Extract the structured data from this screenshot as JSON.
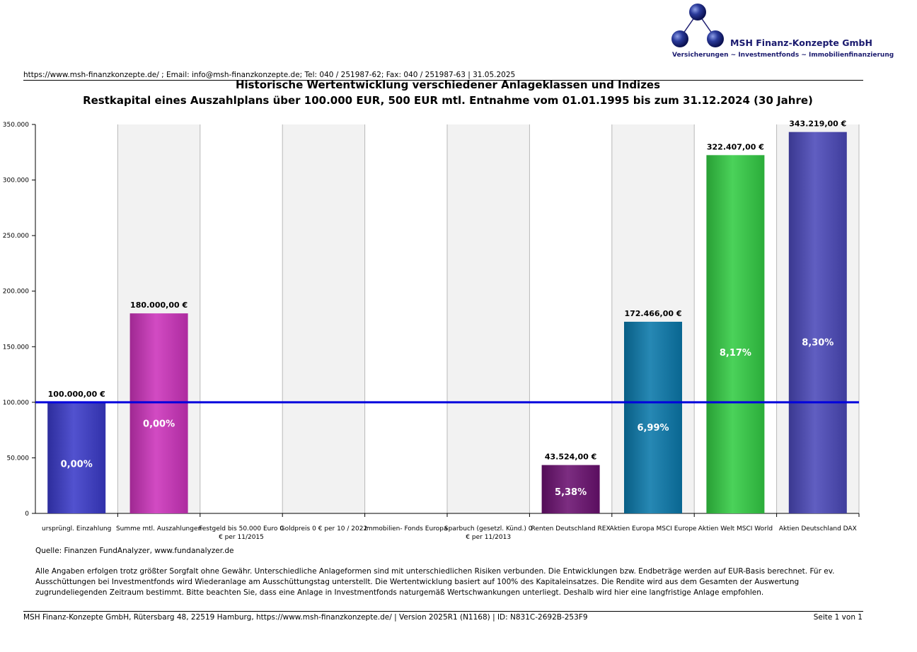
{
  "header": {
    "company_name": "MSH Finanz-Konzepte GmbH",
    "tagline": "Versicherungen ~ Investmentfonds ~ Immobilienfinanzierung",
    "contact_line": "https://www.msh-finanzkonzepte.de/ ; Email: info@msh-finanzkonzepte.de; Tel: 040 / 251987-62; Fax: 040 / 251987-63 | 31.05.2025"
  },
  "chart_data": {
    "type": "bar",
    "title": "Historische Wertentwicklung verschiedener Anlageklassen und Indizes",
    "subtitle": "Restkapital eines Auszahlplans über 100.000 EUR, 500 EUR mtl. Entnahme vom 01.01.1995 bis zum 31.12.2024 (30 Jahre)",
    "ylim": [
      0,
      350000
    ],
    "yticks": [
      0,
      50000,
      100000,
      150000,
      200000,
      250000,
      300000,
      350000
    ],
    "ytick_labels": [
      "0",
      "50.000",
      "100.000",
      "150.000",
      "200.000",
      "250.000",
      "300.000",
      "350.000"
    ],
    "reference_line": 100000,
    "reference_line_color": "#0000dd",
    "grid": true,
    "categories": [
      {
        "name": "ursprüngl. Einzahlung",
        "value": 100000,
        "value_label": "100.000,00 €",
        "pct_label": "0,00%",
        "color": "#3a3ac8"
      },
      {
        "name": "Summe mtl. Auszahlungen",
        "value": 180000,
        "value_label": "180.000,00 €",
        "pct_label": "0,00%",
        "color": "#cc33bb"
      },
      {
        "name": "Festgeld bis 50.000 Euro 0 € per 11/2015",
        "value": 0,
        "value_label": "",
        "pct_label": "",
        "color": "#999999"
      },
      {
        "name": "Goldpreis 0 € per 10 / 2022",
        "value": 0,
        "value_label": "",
        "pct_label": "",
        "color": "#999999"
      },
      {
        "name": "Immobilien- Fonds Europa",
        "value": 0,
        "value_label": "",
        "pct_label": "",
        "color": "#999999"
      },
      {
        "name": "Sparbuch (gesetzl. Künd.) 0 € per 11/2013",
        "value": 0,
        "value_label": "",
        "pct_label": "",
        "color": "#999999"
      },
      {
        "name": "Renten Deutschland REX",
        "value": 43524,
        "value_label": "43.524,00 €",
        "pct_label": "5,38%",
        "color": "#6a1070"
      },
      {
        "name": "Aktien Europa MSCI Europe",
        "value": 172466,
        "value_label": "172.466,00 €",
        "pct_label": "6,99%",
        "color": "#0a78aa"
      },
      {
        "name": "Aktien Welt MSCI World",
        "value": 322407,
        "value_label": "322.407,00 €",
        "pct_label": "8,17%",
        "color": "#33cc44"
      },
      {
        "name": "Aktien Deutschland DAX",
        "value": 343219,
        "value_label": "343.219,00 €",
        "pct_label": "8,30%",
        "color": "#4a48b8"
      }
    ]
  },
  "source": "Quelle: Finanzen FundAnalyzer, www.fundanalyzer.de",
  "disclaimer": "Alle Angaben erfolgen trotz größter Sorgfalt ohne Gewähr. Unterschiedliche Anlageformen sind mit unterschiedlichen Risiken verbunden. Die Entwicklungen bzw. Endbeträge werden auf EUR-Basis berechnet. Für ev. Ausschüttungen bei Investmentfonds wird Wiederanlage am Ausschüttungstag unterstellt. Die Wertentwicklung basiert auf 100% des Kapitaleinsatzes. Die Rendite wird aus dem Gesamten der Auswertung zugrundeliegenden Zeitraum bestimmt. Bitte beachten Sie, dass eine Anlage in Investmentfonds naturgemäß Wertschwankungen unterliegt. Deshalb wird hier eine langfristige Anlage empfohlen.",
  "footer": {
    "address": "MSH Finanz-Konzepte GmbH, Rütersbarg 48, 22519 Hamburg, https://www.msh-finanzkonzepte.de/  | Version 2025R1 (N1168) | ID: N831C-2692B-253F9",
    "page": "Seite 1 von 1"
  }
}
